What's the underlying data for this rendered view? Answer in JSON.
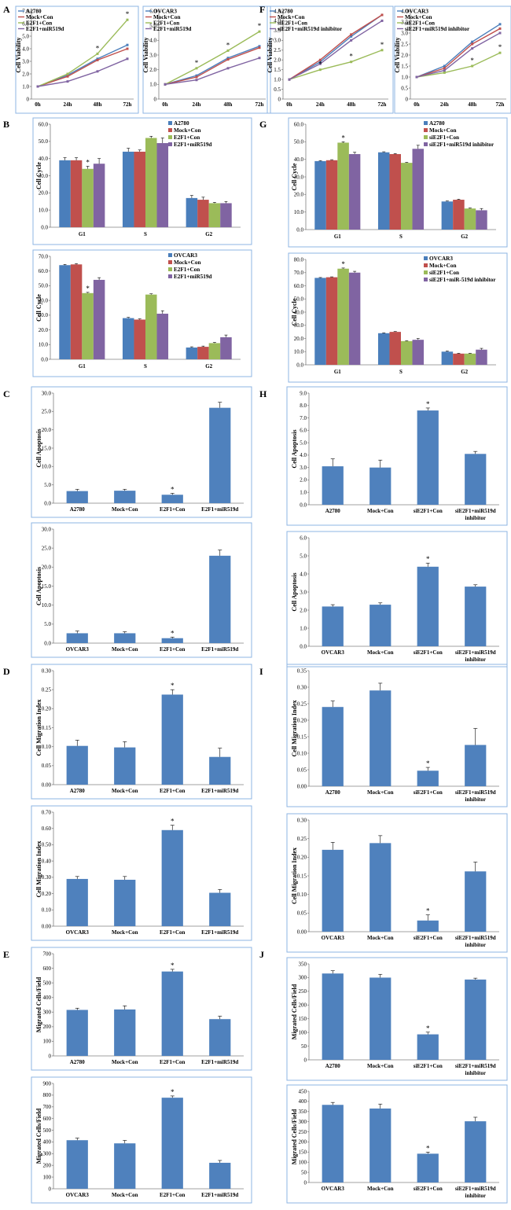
{
  "panels": {
    "A": "A",
    "B": "B",
    "C": "C",
    "D": "D",
    "E": "E",
    "F": "F",
    "G": "G",
    "H": "H",
    "I": "I",
    "J": "J"
  },
  "colors": {
    "blue": "#4a7ebb",
    "red": "#c0504d",
    "green": "#9bbb59",
    "purple": "#8064a2",
    "bar": "#4f81bd",
    "frame": "#8eb4e3"
  },
  "chart_data": [
    {
      "id": "A1",
      "type": "line",
      "ylabel": "Cell Viability",
      "x": [
        "0h",
        "24h",
        "48h",
        "72h"
      ],
      "ylim": [
        0,
        7
      ],
      "yticks": [
        "0",
        "1.0",
        "2.0",
        "3.0",
        "4.0",
        "5.0",
        "6.0",
        "7.0"
      ],
      "series": [
        {
          "name": "A2780",
          "values": [
            1.0,
            1.9,
            3.2,
            4.3
          ]
        },
        {
          "name": "Mock+Con",
          "values": [
            1.0,
            1.8,
            3.1,
            4.0
          ]
        },
        {
          "name": "E2F1+Con",
          "values": [
            1.0,
            2.0,
            3.6,
            6.3
          ]
        },
        {
          "name": "E2F1+miR519d",
          "values": [
            1.0,
            1.4,
            2.2,
            3.2
          ]
        }
      ],
      "stars_at": [
        [
          2,
          3.6
        ],
        [
          3,
          6.3
        ]
      ]
    },
    {
      "id": "A2",
      "type": "line",
      "ylabel": "Cell Viability",
      "x": [
        "0h",
        "24h",
        "48h",
        "72h"
      ],
      "ylim": [
        0,
        6
      ],
      "yticks": [
        "0",
        "1.0",
        "2.0",
        "3.0",
        "4.0",
        "5.0",
        "6.0"
      ],
      "series": [
        {
          "name": "OVCAR3",
          "values": [
            1.0,
            1.6,
            2.8,
            3.6
          ]
        },
        {
          "name": "Mock+Con",
          "values": [
            1.0,
            1.5,
            2.7,
            3.5
          ]
        },
        {
          "name": "E2F1+Con",
          "values": [
            1.0,
            2.1,
            3.3,
            4.6
          ]
        },
        {
          "name": "E2F1+miR519d",
          "values": [
            1.0,
            1.3,
            2.1,
            2.8
          ]
        }
      ],
      "stars_at": [
        [
          1,
          2.1
        ],
        [
          2,
          3.3
        ],
        [
          3,
          4.6
        ]
      ]
    },
    {
      "id": "F1",
      "type": "line",
      "ylabel": "Cell Viability",
      "x": [
        "0h",
        "24h",
        "48h",
        "72h"
      ],
      "ylim": [
        0,
        4.5
      ],
      "yticks": [
        "0",
        "0.5",
        "1.0",
        "1.5",
        "2.0",
        "2.5",
        "3.0",
        "3.5",
        "4.0",
        "4.5"
      ],
      "series": [
        {
          "name": "A2780",
          "values": [
            1.0,
            1.9,
            3.2,
            4.3
          ]
        },
        {
          "name": "Mock+Con",
          "values": [
            1.0,
            2.0,
            3.3,
            4.3
          ]
        },
        {
          "name": "siE2F1+Con",
          "values": [
            1.0,
            1.5,
            1.9,
            2.5
          ]
        },
        {
          "name": "siE2F1+miR519d inhibitor",
          "values": [
            1.0,
            1.8,
            3.0,
            4.0
          ]
        }
      ],
      "stars_at": [
        [
          1,
          1.5
        ],
        [
          2,
          1.9
        ],
        [
          3,
          2.5
        ]
      ]
    },
    {
      "id": "F2",
      "type": "line",
      "ylabel": "Cell Viability",
      "x": [
        "0h",
        "24h",
        "48h",
        "72h"
      ],
      "ylim": [
        0,
        4
      ],
      "yticks": [
        "0",
        "0.5",
        "1.0",
        "1.5",
        "2.0",
        "2.5",
        "3.0",
        "3.5",
        "4.0"
      ],
      "series": [
        {
          "name": "OVCAR3",
          "values": [
            1.0,
            1.5,
            2.6,
            3.4
          ]
        },
        {
          "name": "Mock+Con",
          "values": [
            1.0,
            1.4,
            2.5,
            3.2
          ]
        },
        {
          "name": "siE2F1+Con",
          "values": [
            1.0,
            1.2,
            1.5,
            2.1
          ]
        },
        {
          "name": "siE2F1+miR519d inhibitor",
          "values": [
            1.0,
            1.3,
            2.3,
            3.0
          ]
        }
      ],
      "stars_at": [
        [
          2,
          1.5
        ],
        [
          3,
          2.1
        ]
      ]
    },
    {
      "id": "B1",
      "type": "bar",
      "ylabel": "Cell Cycle",
      "categories": [
        "G1",
        "S",
        "G2"
      ],
      "ylim": [
        0,
        60
      ],
      "yticks": [
        "0.0",
        "10.0",
        "20.0",
        "30.0",
        "40.0",
        "50.0",
        "60.0"
      ],
      "series": [
        {
          "name": "A2780",
          "values": [
            39,
            44,
            17
          ],
          "err": [
            1.5,
            2,
            1.5
          ]
        },
        {
          "name": "Mock+Con",
          "values": [
            39,
            44,
            16
          ],
          "err": [
            1.5,
            1,
            1.5
          ]
        },
        {
          "name": "E2F1+Con",
          "values": [
            34,
            52,
            14
          ],
          "err": [
            1.5,
            1,
            0.5
          ]
        },
        {
          "name": "E2F1+miR519d",
          "values": [
            37,
            49,
            14
          ],
          "err": [
            3,
            3,
            1
          ]
        }
      ],
      "star": [
        0,
        2,
        "*"
      ]
    },
    {
      "id": "B2",
      "type": "bar",
      "ylabel": "Cell Cycle",
      "categories": [
        "G1",
        "S",
        "G2"
      ],
      "ylim": [
        0,
        70
      ],
      "yticks": [
        "0.0",
        "10.0",
        "20.0",
        "30.0",
        "40.0",
        "50.0",
        "60.0",
        "70.0"
      ],
      "series": [
        {
          "name": "OVCAR3",
          "values": [
            64,
            28,
            8
          ],
          "err": [
            0.5,
            0.5,
            0.5
          ]
        },
        {
          "name": "Mock+Con",
          "values": [
            64.5,
            27,
            8.5
          ],
          "err": [
            0.5,
            0.5,
            0.5
          ]
        },
        {
          "name": "E2F1+Con",
          "values": [
            45,
            44,
            11
          ],
          "err": [
            0.5,
            0.5,
            0.5
          ]
        },
        {
          "name": "E2F1+miR519d",
          "values": [
            54,
            31,
            15
          ],
          "err": [
            1.5,
            2,
            1.5
          ]
        }
      ],
      "star": [
        0,
        2,
        "*"
      ]
    },
    {
      "id": "G1",
      "type": "bar",
      "ylabel": "Cell Cycle",
      "categories": [
        "G1",
        "S",
        "G2"
      ],
      "ylim": [
        0,
        60
      ],
      "yticks": [
        "0.0",
        "10.0",
        "20.0",
        "30.0",
        "40.0",
        "50.0",
        "60.0"
      ],
      "series": [
        {
          "name": "A2780",
          "values": [
            39,
            44,
            16
          ],
          "err": [
            0.3,
            0.3,
            0.3
          ]
        },
        {
          "name": "Mock+Con",
          "values": [
            39.5,
            43,
            17
          ],
          "err": [
            0.3,
            0.3,
            0.3
          ]
        },
        {
          "name": "siE2F1+Con",
          "values": [
            49.5,
            38,
            12
          ],
          "err": [
            0.5,
            0.3,
            0.3
          ]
        },
        {
          "name": "siE2F1+miR519d inhibitor",
          "values": [
            43,
            46,
            11
          ],
          "err": [
            1,
            2,
            1
          ]
        }
      ],
      "star": [
        0,
        2,
        "*"
      ]
    },
    {
      "id": "G2",
      "type": "bar",
      "ylabel": "Cell Cycle",
      "categories": [
        "G1",
        "S",
        "G2"
      ],
      "ylim": [
        0,
        80
      ],
      "yticks": [
        "0.0",
        "10.0",
        "20.0",
        "30.0",
        "40.0",
        "50.0",
        "60.0",
        "70.0",
        "80.0"
      ],
      "series": [
        {
          "name": "OVCAR3",
          "values": [
            66,
            24,
            10
          ],
          "err": [
            0.3,
            0.3,
            0.5
          ]
        },
        {
          "name": "Mock+Con",
          "values": [
            66.5,
            25,
            8.5
          ],
          "err": [
            0.3,
            0.3,
            0.3
          ]
        },
        {
          "name": "siE2F1+Con",
          "values": [
            73,
            18,
            8.5
          ],
          "err": [
            0.5,
            0.3,
            0.3
          ]
        },
        {
          "name": "siE2F1+miR-519d inhibitor",
          "values": [
            70,
            19,
            11.5
          ],
          "err": [
            1,
            1,
            1
          ]
        }
      ],
      "star": [
        0,
        2,
        "*"
      ]
    },
    {
      "id": "C1",
      "type": "bar1",
      "ylabel": "Cell Apoptosis",
      "categories": [
        "A2780",
        "Mock+Con",
        "E2F1+Con",
        "E2F1+miR519d"
      ],
      "ylim": [
        0,
        30
      ],
      "yticks": [
        "0.0",
        "5.0",
        "10.0",
        "15.0",
        "20.0",
        "25.0",
        "30.0"
      ],
      "values": [
        3.3,
        3.4,
        2.3,
        26.0
      ],
      "err": [
        0.5,
        0.4,
        0.4,
        1.5
      ],
      "stars": [
        2
      ]
    },
    {
      "id": "C2",
      "type": "bar1",
      "ylabel": "Cell Apoptosis",
      "categories": [
        "OVCAR3",
        "Mock+Con",
        "E2F1+Con",
        "E2F1+miR519d"
      ],
      "ylim": [
        0,
        30
      ],
      "yticks": [
        "0.0",
        "5.0",
        "10.0",
        "15.0",
        "20.0",
        "25.0",
        "30.0"
      ],
      "values": [
        2.6,
        2.6,
        1.3,
        23.0
      ],
      "err": [
        0.6,
        0.4,
        0.3,
        1.5
      ],
      "stars": [
        2
      ]
    },
    {
      "id": "H1",
      "type": "bar1",
      "ylabel": "Cell Apoptosis",
      "categories": [
        "A2780",
        "Mock+Con",
        "siE2F1+Con",
        "siE2F1+miR519d inhibitor"
      ],
      "ylim": [
        0,
        9
      ],
      "yticks": [
        "0.0",
        "1.0",
        "2.0",
        "3.0",
        "4.0",
        "5.0",
        "6.0",
        "7.0",
        "8.0",
        "9.0"
      ],
      "values": [
        3.1,
        3.0,
        7.6,
        4.1
      ],
      "err": [
        0.6,
        0.6,
        0.2,
        0.2
      ],
      "stars": [
        2
      ]
    },
    {
      "id": "H2",
      "type": "bar1",
      "ylabel": "Cell Apoptosis",
      "categories": [
        "OVCAR3",
        "Mock+Con",
        "siE2F1+Con",
        "siE2F1+miR519d inhibitor"
      ],
      "ylim": [
        0,
        6
      ],
      "yticks": [
        "0.0",
        "1.0",
        "2.0",
        "3.0",
        "4.0",
        "5.0",
        "6.0"
      ],
      "values": [
        2.2,
        2.3,
        4.4,
        3.3
      ],
      "err": [
        0.1,
        0.1,
        0.2,
        0.1
      ],
      "stars": [
        2
      ]
    },
    {
      "id": "D1",
      "type": "bar1",
      "ylabel": "Cell Migration Index",
      "categories": [
        "A2780",
        "Mock+Con",
        "E2F1+Con",
        "E2F1+miR519d"
      ],
      "ylim": [
        0,
        0.3
      ],
      "yticks": [
        "0.00",
        "0.05",
        "0.10",
        "0.15",
        "0.20",
        "0.25",
        "0.30"
      ],
      "values": [
        0.102,
        0.098,
        0.237,
        0.073
      ],
      "err": [
        0.015,
        0.015,
        0.013,
        0.023
      ],
      "stars": [
        2
      ]
    },
    {
      "id": "D2",
      "type": "bar1",
      "ylabel": "Cell Migration Index",
      "categories": [
        "OVCAR3",
        "Mock+Con",
        "E2F1+Con",
        "E2F1+miR519d"
      ],
      "ylim": [
        0,
        0.7
      ],
      "yticks": [
        "0.00",
        "0.10",
        "0.20",
        "0.30",
        "0.40",
        "0.50",
        "0.60",
        "0.70"
      ],
      "values": [
        0.29,
        0.285,
        0.59,
        0.205
      ],
      "err": [
        0.015,
        0.02,
        0.03,
        0.02
      ],
      "stars": [
        2
      ]
    },
    {
      "id": "I1",
      "type": "bar1",
      "ylabel": "Cell Migration Index",
      "categories": [
        "A2780",
        "Mock+Con",
        "siE2F1+Con",
        "siE2F1+miR519d inhibitor"
      ],
      "ylim": [
        0,
        0.35
      ],
      "yticks": [
        "0.00",
        "0.05",
        "0.10",
        "0.15",
        "0.20",
        "0.25",
        "0.30",
        "0.35"
      ],
      "values": [
        0.24,
        0.29,
        0.047,
        0.125
      ],
      "err": [
        0.018,
        0.022,
        0.01,
        0.05
      ],
      "stars": [
        2
      ]
    },
    {
      "id": "I2",
      "type": "bar1",
      "ylabel": "Cell Migration Index",
      "categories": [
        "OVCAR3",
        "Mock+Con",
        "siE2F1+Con",
        "siE2F1+miR519d inhibitor"
      ],
      "ylim": [
        0,
        0.3
      ],
      "yticks": [
        "0.00",
        "0.05",
        "0.10",
        "0.15",
        "0.20",
        "0.25",
        "0.30"
      ],
      "values": [
        0.22,
        0.238,
        0.03,
        0.162
      ],
      "err": [
        0.02,
        0.02,
        0.015,
        0.025
      ],
      "stars": [
        2
      ]
    },
    {
      "id": "E1",
      "type": "bar1",
      "ylabel": "Migrated Cells/Field",
      "categories": [
        "A2780",
        "Mock+Con",
        "E2F1+Con",
        "E2F1+miR519d"
      ],
      "ylim": [
        0,
        700
      ],
      "yticks": [
        "0",
        "100",
        "200",
        "300",
        "400",
        "500",
        "600",
        "700"
      ],
      "values": [
        315,
        318,
        578,
        252
      ],
      "err": [
        12,
        25,
        15,
        20
      ],
      "stars": [
        2
      ]
    },
    {
      "id": "E2",
      "type": "bar1",
      "ylabel": "Migrated Cells/Field",
      "categories": [
        "OVCAR3",
        "Mock+Con",
        "E2F1+Con",
        "E2F1+miR519d"
      ],
      "ylim": [
        0,
        900
      ],
      "yticks": [
        "0",
        "100",
        "200",
        "300",
        "400",
        "500",
        "600",
        "700",
        "800",
        "900"
      ],
      "values": [
        415,
        388,
        778,
        222
      ],
      "err": [
        18,
        25,
        15,
        20
      ],
      "stars": [
        2
      ]
    },
    {
      "id": "J1",
      "type": "bar1",
      "ylabel": "Migrated Cells/Field",
      "categories": [
        "A2780",
        "Mock+Con",
        "siE2F1+Con",
        "siE2F1+miR519d inhibitor"
      ],
      "ylim": [
        0,
        350
      ],
      "yticks": [
        "0",
        "50",
        "100",
        "150",
        "200",
        "250",
        "300",
        "350"
      ],
      "values": [
        315,
        300,
        93,
        293
      ],
      "err": [
        10,
        12,
        8,
        5
      ],
      "stars": [
        2
      ]
    },
    {
      "id": "J2",
      "type": "bar1",
      "ylabel": "Migrated Cells/Field",
      "categories": [
        "OVCAR3",
        "Mock+Con",
        "siE2F1+Con",
        "siE2F1+miR519d inhibitor"
      ],
      "ylim": [
        0,
        450
      ],
      "yticks": [
        "0",
        "50",
        "100",
        "150",
        "200",
        "250",
        "300",
        "350",
        "400",
        "450"
      ],
      "values": [
        383,
        365,
        142,
        302
      ],
      "err": [
        12,
        22,
        8,
        20
      ],
      "stars": [
        2
      ]
    }
  ]
}
